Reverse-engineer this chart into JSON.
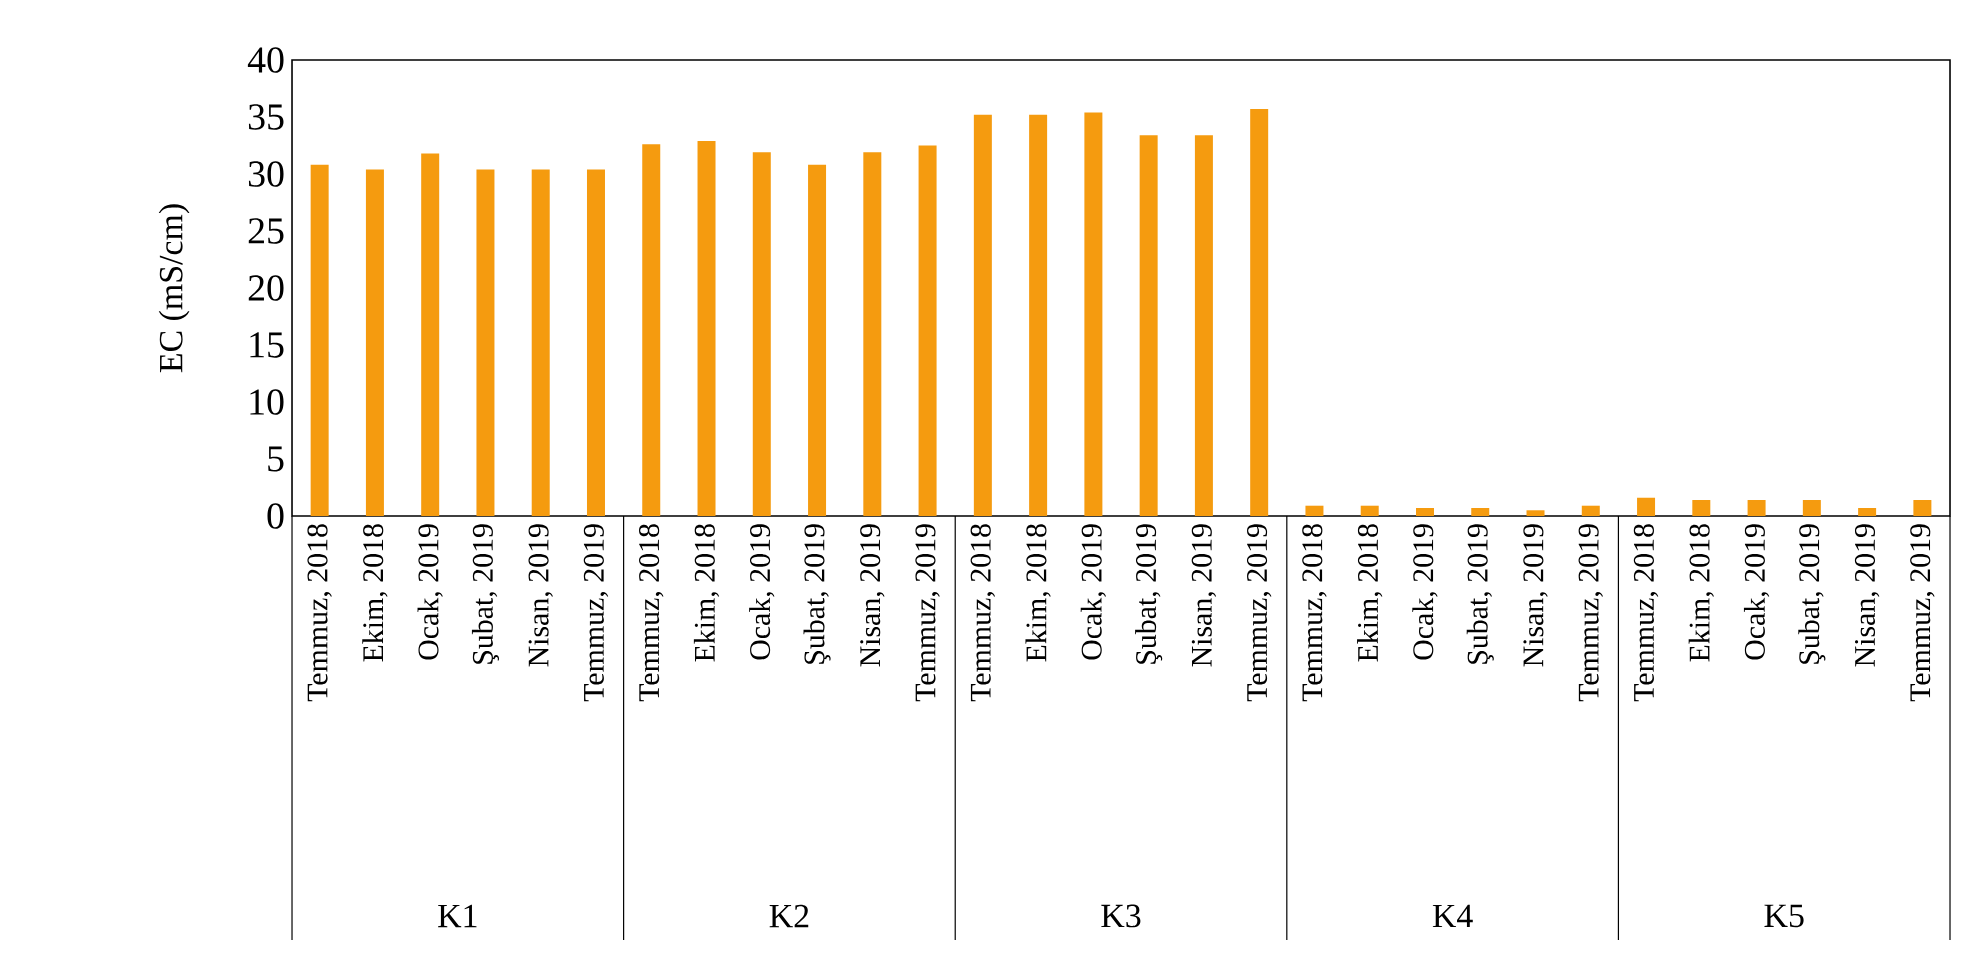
{
  "chart_data": {
    "type": "bar",
    "ylabel": "EC (mS/cm)",
    "categories": [
      "Temmuz, 2018",
      "Ekim, 2018",
      "Ocak, 2019",
      "Şubat, 2019",
      "Nisan, 2019",
      "Temmuz, 2019",
      "Temmuz, 2018",
      "Ekim, 2018",
      "Ocak, 2019",
      "Şubat, 2019",
      "Nisan, 2019",
      "Temmuz, 2019",
      "Temmuz, 2018",
      "Ekim, 2018",
      "Ocak, 2019",
      "Şubat, 2019",
      "Nisan, 2019",
      "Temmuz, 2019",
      "Temmuz, 2018",
      "Ekim, 2018",
      "Ocak, 2019",
      "Şubat, 2019",
      "Nisan, 2019",
      "Temmuz, 2019",
      "Temmuz, 2018",
      "Ekim, 2018",
      "Ocak, 2019",
      "Şubat, 2019",
      "Nisan, 2019",
      "Temmuz, 2019"
    ],
    "values": [
      30.8,
      30.4,
      31.8,
      30.4,
      30.4,
      30.4,
      32.6,
      32.9,
      31.9,
      30.8,
      31.9,
      32.5,
      35.2,
      35.2,
      35.4,
      33.4,
      33.4,
      35.7,
      0.9,
      0.9,
      0.7,
      0.7,
      0.5,
      0.9,
      1.6,
      1.4,
      1.4,
      1.4,
      0.7,
      1.4
    ],
    "color": "#f59b0f",
    "ylim": [
      0,
      40
    ],
    "yticks": [
      0,
      5,
      10,
      15,
      20,
      25,
      30,
      35,
      40
    ],
    "annotations": [
      "K1",
      "K2",
      "K3",
      "K4",
      "K5"
    ]
  }
}
